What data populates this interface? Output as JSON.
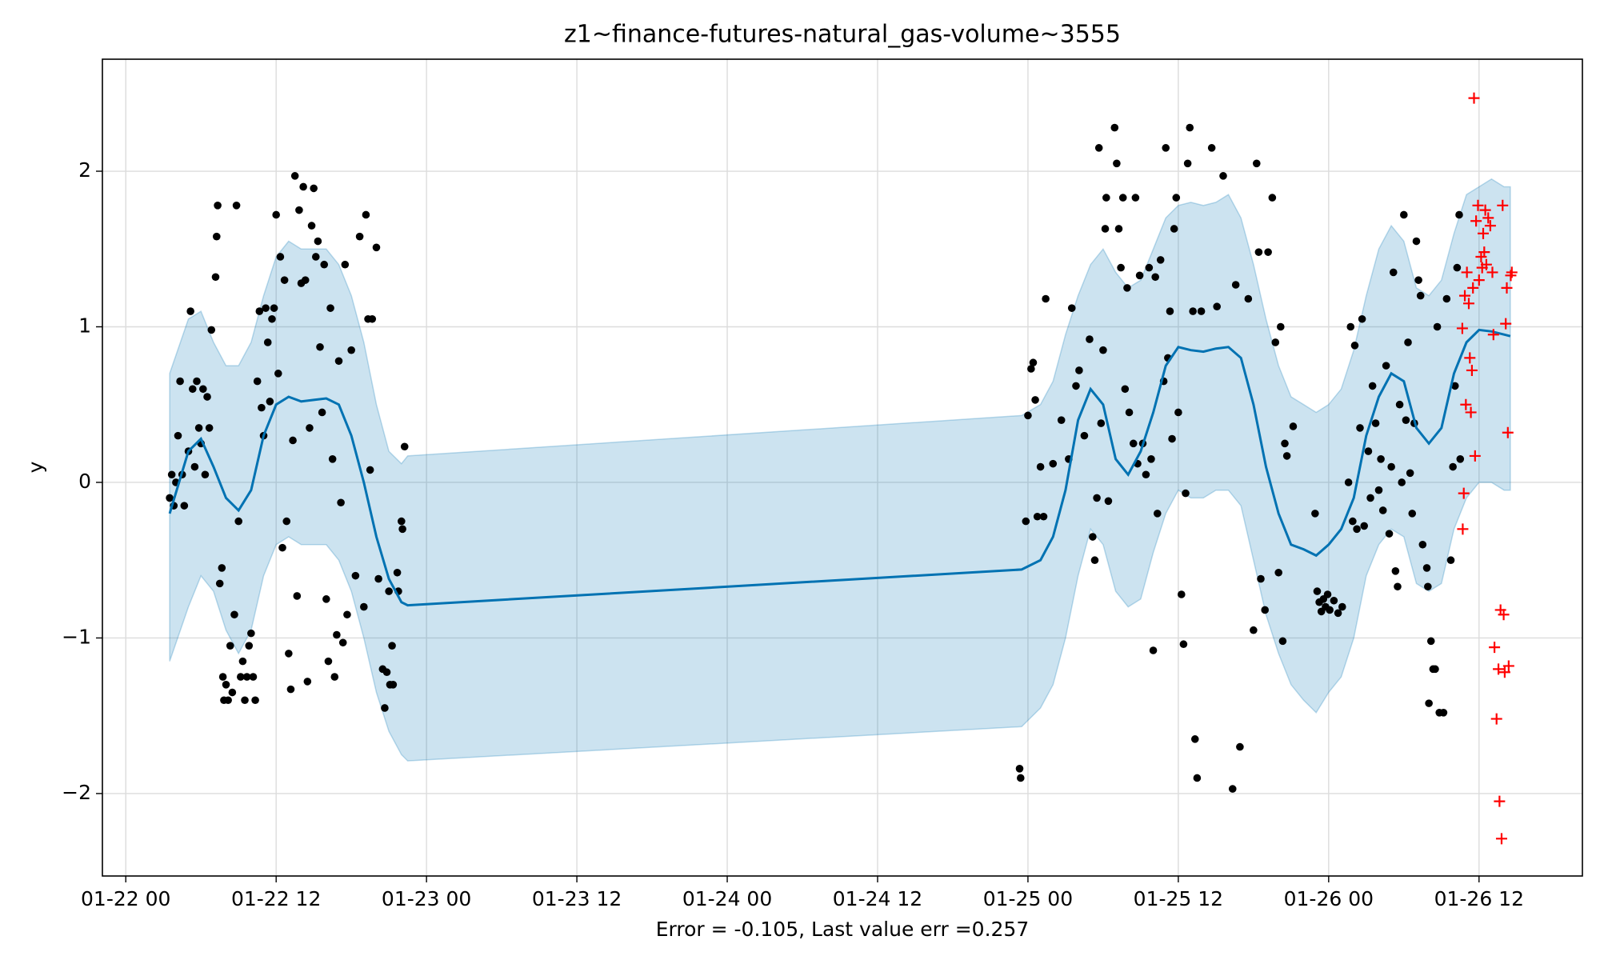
{
  "chart_data": {
    "type": "forecast",
    "title": "z1~finance-futures-natural_gas-volume~3555",
    "x_label": "Error = -0.105, Last value err =0.257",
    "y_label": "y",
    "grid": true,
    "xlim": [
      "01-21 22:08",
      "01-26 20:15"
    ],
    "xticks": [
      "01-22 00",
      "01-22 12",
      "01-23 00",
      "01-23 12",
      "01-24 00",
      "01-24 12",
      "01-25 00",
      "01-25 12",
      "01-26 00",
      "01-26 12"
    ],
    "ylim": [
      -2.53,
      2.72
    ],
    "yticks": [
      {
        "value": -2,
        "label": "−2"
      },
      {
        "value": -1,
        "label": "−1"
      },
      0,
      1,
      2
    ],
    "forecast": {
      "color": "#0072b2",
      "band_color": "#0072b2",
      "x": [
        "01-22 03:30",
        "01-22 05:00",
        "01-22 06:00",
        "01-22 07:00",
        "01-22 08:00",
        "01-22 09:00",
        "01-22 10:00",
        "01-22 11:00",
        "01-22 12:00",
        "01-22 13:00",
        "01-22 14:00",
        "01-22 15:00",
        "01-22 16:00",
        "01-22 17:00",
        "01-22 18:00",
        "01-22 19:00",
        "01-22 20:00",
        "01-22 21:00",
        "01-22 22:00",
        "01-22 22:30",
        "01-24 23:30",
        "01-25 01:00",
        "01-25 02:00",
        "01-25 03:00",
        "01-25 04:00",
        "01-25 05:00",
        "01-25 06:00",
        "01-25 07:00",
        "01-25 08:00",
        "01-25 09:00",
        "01-25 10:00",
        "01-25 11:00",
        "01-25 12:00",
        "01-25 13:00",
        "01-25 14:00",
        "01-25 15:00",
        "01-25 16:00",
        "01-25 17:00",
        "01-25 18:00",
        "01-25 19:00",
        "01-25 20:00",
        "01-25 21:00",
        "01-25 22:00",
        "01-25 23:00",
        "01-26 00:00",
        "01-26 01:00",
        "01-26 02:00",
        "01-26 03:00",
        "01-26 04:00",
        "01-26 05:00",
        "01-26 06:00",
        "01-26 07:00",
        "01-26 08:00",
        "01-26 09:00",
        "01-26 10:00",
        "01-26 11:00",
        "01-26 12:00",
        "01-26 13:00",
        "01-26 14:00",
        "01-26 14:30"
      ],
      "values": [
        -0.2,
        0.2,
        0.28,
        0.1,
        -0.1,
        -0.18,
        -0.05,
        0.3,
        0.5,
        0.55,
        0.52,
        0.53,
        0.54,
        0.5,
        0.3,
        0.0,
        -0.35,
        -0.62,
        -0.77,
        -0.79,
        -0.56,
        -0.5,
        -0.35,
        -0.05,
        0.4,
        0.6,
        0.5,
        0.15,
        0.05,
        0.2,
        0.45,
        0.75,
        0.87,
        0.85,
        0.84,
        0.86,
        0.87,
        0.8,
        0.5,
        0.1,
        -0.2,
        -0.4,
        -0.43,
        -0.47,
        -0.4,
        -0.3,
        -0.1,
        0.3,
        0.55,
        0.7,
        0.65,
        0.35,
        0.25,
        0.35,
        0.7,
        0.9,
        0.98,
        0.97,
        0.95,
        0.94
      ],
      "upper": [
        0.7,
        1.05,
        1.1,
        0.9,
        0.75,
        0.75,
        0.9,
        1.2,
        1.45,
        1.55,
        1.5,
        1.5,
        1.5,
        1.4,
        1.2,
        0.9,
        0.5,
        0.2,
        0.12,
        0.17,
        0.43,
        0.5,
        0.65,
        0.95,
        1.2,
        1.4,
        1.5,
        1.35,
        1.25,
        1.3,
        1.5,
        1.7,
        1.78,
        1.8,
        1.78,
        1.8,
        1.85,
        1.7,
        1.4,
        1.05,
        0.75,
        0.55,
        0.5,
        0.45,
        0.5,
        0.6,
        0.85,
        1.2,
        1.5,
        1.65,
        1.55,
        1.25,
        1.2,
        1.3,
        1.6,
        1.85,
        1.9,
        1.95,
        1.9,
        1.9
      ],
      "lower": [
        -1.15,
        -0.8,
        -0.6,
        -0.7,
        -0.95,
        -1.1,
        -0.95,
        -0.6,
        -0.4,
        -0.35,
        -0.4,
        -0.4,
        -0.4,
        -0.5,
        -0.7,
        -1.0,
        -1.35,
        -1.6,
        -1.75,
        -1.79,
        -1.57,
        -1.45,
        -1.3,
        -1.0,
        -0.6,
        -0.3,
        -0.4,
        -0.7,
        -0.8,
        -0.75,
        -0.45,
        -0.2,
        -0.05,
        -0.1,
        -0.1,
        -0.05,
        -0.05,
        -0.15,
        -0.5,
        -0.85,
        -1.1,
        -1.3,
        -1.4,
        -1.48,
        -1.35,
        -1.25,
        -1.0,
        -0.6,
        -0.4,
        -0.3,
        -0.35,
        -0.65,
        -0.7,
        -0.65,
        -0.3,
        -0.1,
        0.0,
        0.0,
        -0.05,
        -0.05
      ]
    },
    "observed": {
      "color": "#000000",
      "x": [
        "01-22 03:30",
        "01-22 03:40",
        "01-22 03:50",
        "01-22 04:00",
        "01-22 04:10",
        "01-22 04:20",
        "01-22 04:30",
        "01-22 04:40",
        "01-22 05:00",
        "01-22 05:10",
        "01-22 05:20",
        "01-22 05:30",
        "01-22 05:40",
        "01-22 05:50",
        "01-22 06:00",
        "01-22 06:10",
        "01-22 06:20",
        "01-22 06:30",
        "01-22 06:40",
        "01-22 06:50",
        "01-22 07:10",
        "01-22 07:15",
        "01-22 07:20",
        "01-22 07:30",
        "01-22 07:40",
        "01-22 07:45",
        "01-22 07:50",
        "01-22 08:00",
        "01-22 08:10",
        "01-22 08:20",
        "01-22 08:30",
        "01-22 08:40",
        "01-22 08:50",
        "01-22 09:00",
        "01-22 09:10",
        "01-22 09:20",
        "01-22 09:30",
        "01-22 09:40",
        "01-22 09:50",
        "01-22 10:00",
        "01-22 10:10",
        "01-22 10:20",
        "01-22 10:30",
        "01-22 10:40",
        "01-22 10:50",
        "01-22 11:00",
        "01-22 11:10",
        "01-22 11:20",
        "01-22 11:30",
        "01-22 11:40",
        "01-22 11:50",
        "01-22 12:00",
        "01-22 12:10",
        "01-22 12:20",
        "01-22 12:30",
        "01-22 12:40",
        "01-22 12:50",
        "01-22 13:00",
        "01-22 13:10",
        "01-22 13:20",
        "01-22 13:30",
        "01-22 13:40",
        "01-22 13:50",
        "01-22 14:00",
        "01-22 14:10",
        "01-22 14:20",
        "01-22 14:30",
        "01-22 14:40",
        "01-22 14:50",
        "01-22 15:00",
        "01-22 15:10",
        "01-22 15:20",
        "01-22 15:30",
        "01-22 15:40",
        "01-22 15:50",
        "01-22 16:00",
        "01-22 16:10",
        "01-22 16:20",
        "01-22 16:30",
        "01-22 16:40",
        "01-22 16:50",
        "01-22 17:00",
        "01-22 17:10",
        "01-22 17:20",
        "01-22 17:30",
        "01-22 17:40",
        "01-22 18:00",
        "01-22 18:20",
        "01-22 18:40",
        "01-22 19:00",
        "01-22 19:10",
        "01-22 19:20",
        "01-22 19:30",
        "01-22 19:40",
        "01-22 20:00",
        "01-22 20:10",
        "01-22 20:30",
        "01-22 20:40",
        "01-22 20:50",
        "01-22 21:00",
        "01-22 21:05",
        "01-22 21:15",
        "01-22 21:20",
        "01-22 21:40",
        "01-22 21:45",
        "01-22 22:00",
        "01-22 22:05",
        "01-22 22:15",
        "01-24 23:20",
        "01-24 23:25",
        "01-24 23:50",
        "01-25 00:00",
        "01-25 00:15",
        "01-25 00:25",
        "01-25 00:35",
        "01-25 00:45",
        "01-25 01:00",
        "01-25 01:15",
        "01-25 01:25",
        "01-25 02:00",
        "01-25 02:40",
        "01-25 03:15",
        "01-25 03:30",
        "01-25 03:50",
        "01-25 04:05",
        "01-25 04:30",
        "01-25 04:55",
        "01-25 05:10",
        "01-25 05:20",
        "01-25 05:30",
        "01-25 05:40",
        "01-25 05:50",
        "01-25 06:00",
        "01-25 06:10",
        "01-25 06:15",
        "01-25 06:25",
        "01-25 06:55",
        "01-25 07:05",
        "01-25 07:15",
        "01-25 07:25",
        "01-25 07:35",
        "01-25 07:45",
        "01-25 07:55",
        "01-25 08:05",
        "01-25 08:25",
        "01-25 08:35",
        "01-25 08:45",
        "01-25 08:55",
        "01-25 09:10",
        "01-25 09:25",
        "01-25 09:40",
        "01-25 09:50",
        "01-25 10:00",
        "01-25 10:10",
        "01-25 10:20",
        "01-25 10:35",
        "01-25 10:50",
        "01-25 11:00",
        "01-25 11:10",
        "01-25 11:20",
        "01-25 11:30",
        "01-25 11:40",
        "01-25 11:50",
        "01-25 12:00",
        "01-25 12:15",
        "01-25 12:25",
        "01-25 12:35",
        "01-25 12:45",
        "01-25 12:55",
        "01-25 13:10",
        "01-25 13:20",
        "01-25 13:30",
        "01-25 13:50",
        "01-25 14:40",
        "01-25 15:05",
        "01-25 15:35",
        "01-25 16:20",
        "01-25 16:35",
        "01-25 16:55",
        "01-25 17:35",
        "01-25 18:00",
        "01-25 18:15",
        "01-25 18:25",
        "01-25 18:35",
        "01-25 18:55",
        "01-25 19:10",
        "01-25 19:30",
        "01-25 19:45",
        "01-25 20:00",
        "01-25 20:10",
        "01-25 20:20",
        "01-25 20:30",
        "01-25 20:40",
        "01-25 21:10",
        "01-25 22:55",
        "01-25 23:05",
        "01-25 23:15",
        "01-25 23:25",
        "01-25 23:35",
        "01-25 23:45",
        "01-25 23:55",
        "01-26 00:05",
        "01-26 00:25",
        "01-26 00:45",
        "01-26 01:05",
        "01-26 01:35",
        "01-26 01:45",
        "01-26 01:55",
        "01-26 02:05",
        "01-26 02:15",
        "01-26 02:30",
        "01-26 02:40",
        "01-26 02:50",
        "01-26 03:10",
        "01-26 03:20",
        "01-26 03:30",
        "01-26 03:45",
        "01-26 04:00",
        "01-26 04:10",
        "01-26 04:20",
        "01-26 04:35",
        "01-26 04:50",
        "01-26 05:00",
        "01-26 05:10",
        "01-26 05:20",
        "01-26 05:30",
        "01-26 05:40",
        "01-26 05:50",
        "01-26 06:00",
        "01-26 06:10",
        "01-26 06:20",
        "01-26 06:30",
        "01-26 06:40",
        "01-26 06:50",
        "01-26 07:00",
        "01-26 07:10",
        "01-26 07:20",
        "01-26 07:30",
        "01-26 07:50",
        "01-26 07:55",
        "01-26 08:00",
        "01-26 08:10",
        "01-26 08:20",
        "01-26 08:30",
        "01-26 08:40",
        "01-26 08:50",
        "01-26 09:10",
        "01-26 09:25",
        "01-26 09:45",
        "01-26 09:55",
        "01-26 10:05",
        "01-26 10:15",
        "01-26 10:25",
        "01-26 10:30"
      ],
      "values": [
        -0.1,
        0.05,
        -0.15,
        0.0,
        0.3,
        0.65,
        0.05,
        -0.15,
        0.2,
        1.1,
        0.6,
        0.1,
        0.65,
        0.35,
        0.25,
        0.6,
        0.05,
        0.55,
        0.35,
        0.98,
        1.32,
        1.58,
        1.78,
        -0.65,
        -0.55,
        -1.25,
        -1.4,
        -1.3,
        -1.4,
        -1.05,
        -1.35,
        -0.85,
        1.78,
        -0.25,
        -1.25,
        -1.15,
        -1.4,
        -1.25,
        -1.05,
        -0.97,
        -1.25,
        -1.4,
        0.65,
        1.1,
        0.48,
        0.3,
        1.12,
        0.9,
        0.52,
        1.05,
        1.12,
        1.72,
        0.7,
        1.45,
        -0.42,
        1.3,
        -0.25,
        -1.1,
        -1.33,
        0.27,
        1.97,
        -0.73,
        1.75,
        1.28,
        1.9,
        1.3,
        -1.28,
        0.35,
        1.65,
        1.89,
        1.45,
        1.55,
        0.87,
        0.45,
        1.4,
        -0.75,
        -1.15,
        1.12,
        0.15,
        -1.25,
        -0.98,
        0.78,
        -0.13,
        -1.03,
        1.4,
        -0.85,
        0.85,
        -0.6,
        1.58,
        -0.8,
        1.72,
        1.05,
        0.08,
        1.05,
        1.51,
        -0.62,
        -1.2,
        -1.45,
        -1.22,
        -0.7,
        -1.3,
        -1.05,
        -1.3,
        -0.58,
        -0.7,
        -0.25,
        -0.3,
        0.23,
        -1.84,
        -1.9,
        -0.25,
        0.43,
        0.73,
        0.77,
        0.53,
        -0.22,
        0.1,
        -0.22,
        1.18,
        0.12,
        0.4,
        0.15,
        1.12,
        0.62,
        0.72,
        0.3,
        0.92,
        -0.35,
        -0.5,
        -0.1,
        2.15,
        0.38,
        0.85,
        1.63,
        1.83,
        -0.12,
        2.28,
        2.05,
        1.63,
        1.38,
        1.83,
        0.6,
        1.25,
        0.45,
        0.25,
        1.83,
        0.12,
        1.33,
        0.25,
        0.05,
        1.38,
        0.15,
        -1.08,
        1.32,
        -0.2,
        1.43,
        0.65,
        2.15,
        0.8,
        1.1,
        0.28,
        1.63,
        1.83,
        0.45,
        -0.72,
        -1.04,
        -0.07,
        2.05,
        2.28,
        1.1,
        -1.65,
        -1.9,
        1.1,
        2.15,
        1.13,
        1.97,
        -1.97,
        1.27,
        -1.7,
        1.18,
        -0.95,
        2.05,
        1.48,
        -0.62,
        -0.82,
        1.48,
        1.83,
        0.9,
        -0.58,
        1.0,
        -1.02,
        0.25,
        0.17,
        0.36,
        -0.2,
        -0.7,
        -0.77,
        -0.83,
        -0.75,
        -0.8,
        -0.72,
        -0.82,
        -0.76,
        -0.84,
        -0.8,
        0.0,
        1.0,
        -0.25,
        0.88,
        -0.3,
        0.35,
        1.05,
        -0.28,
        0.2,
        -0.1,
        0.62,
        0.38,
        -0.05,
        0.15,
        -0.18,
        0.75,
        -0.33,
        0.1,
        1.35,
        -0.57,
        -0.67,
        0.5,
        0.0,
        1.72,
        0.4,
        0.9,
        0.06,
        -0.2,
        0.38,
        1.55,
        1.3,
        1.2,
        -0.4,
        -0.55,
        -0.67,
        -1.42,
        -1.02,
        -1.2,
        -1.2,
        1.0,
        -1.48,
        -1.48,
        1.18,
        -0.5,
        0.1,
        0.62,
        1.38,
        1.72,
        0.15
      ]
    },
    "future": {
      "color": "#ff0000",
      "x": [
        "01-26 10:40",
        "01-26 10:42",
        "01-26 10:47",
        "01-26 10:52",
        "01-26 10:57",
        "01-26 11:02",
        "01-26 11:11",
        "01-26 11:16",
        "01-26 11:21",
        "01-26 11:26",
        "01-26 11:31",
        "01-26 11:36",
        "01-26 11:41",
        "01-26 11:46",
        "01-26 11:55",
        "01-26 12:00",
        "01-26 12:10",
        "01-26 12:15",
        "01-26 12:20",
        "01-26 12:25",
        "01-26 12:30",
        "01-26 12:35",
        "01-26 12:44",
        "01-26 12:54",
        "01-26 13:04",
        "01-26 13:09",
        "01-26 13:14",
        "01-26 13:24",
        "01-26 13:33",
        "01-26 13:38",
        "01-26 13:43",
        "01-26 13:48",
        "01-26 13:53",
        "01-26 13:58",
        "01-26 14:03",
        "01-26 14:08",
        "01-26 14:13",
        "01-26 14:18",
        "01-26 14:22",
        "01-26 14:32",
        "01-26 14:37"
      ],
      "values": [
        0.99,
        -0.3,
        -0.07,
        1.2,
        0.5,
        1.35,
        1.15,
        0.8,
        0.45,
        0.72,
        1.25,
        2.47,
        0.17,
        1.68,
        1.78,
        1.3,
        1.45,
        1.38,
        1.6,
        1.48,
        1.75,
        1.4,
        1.7,
        1.65,
        1.35,
        0.95,
        -1.06,
        -1.52,
        -1.2,
        -2.05,
        -0.82,
        -2.29,
        1.78,
        -0.85,
        -1.22,
        1.02,
        1.25,
        0.32,
        -1.18,
        1.33,
        1.35
      ]
    }
  }
}
